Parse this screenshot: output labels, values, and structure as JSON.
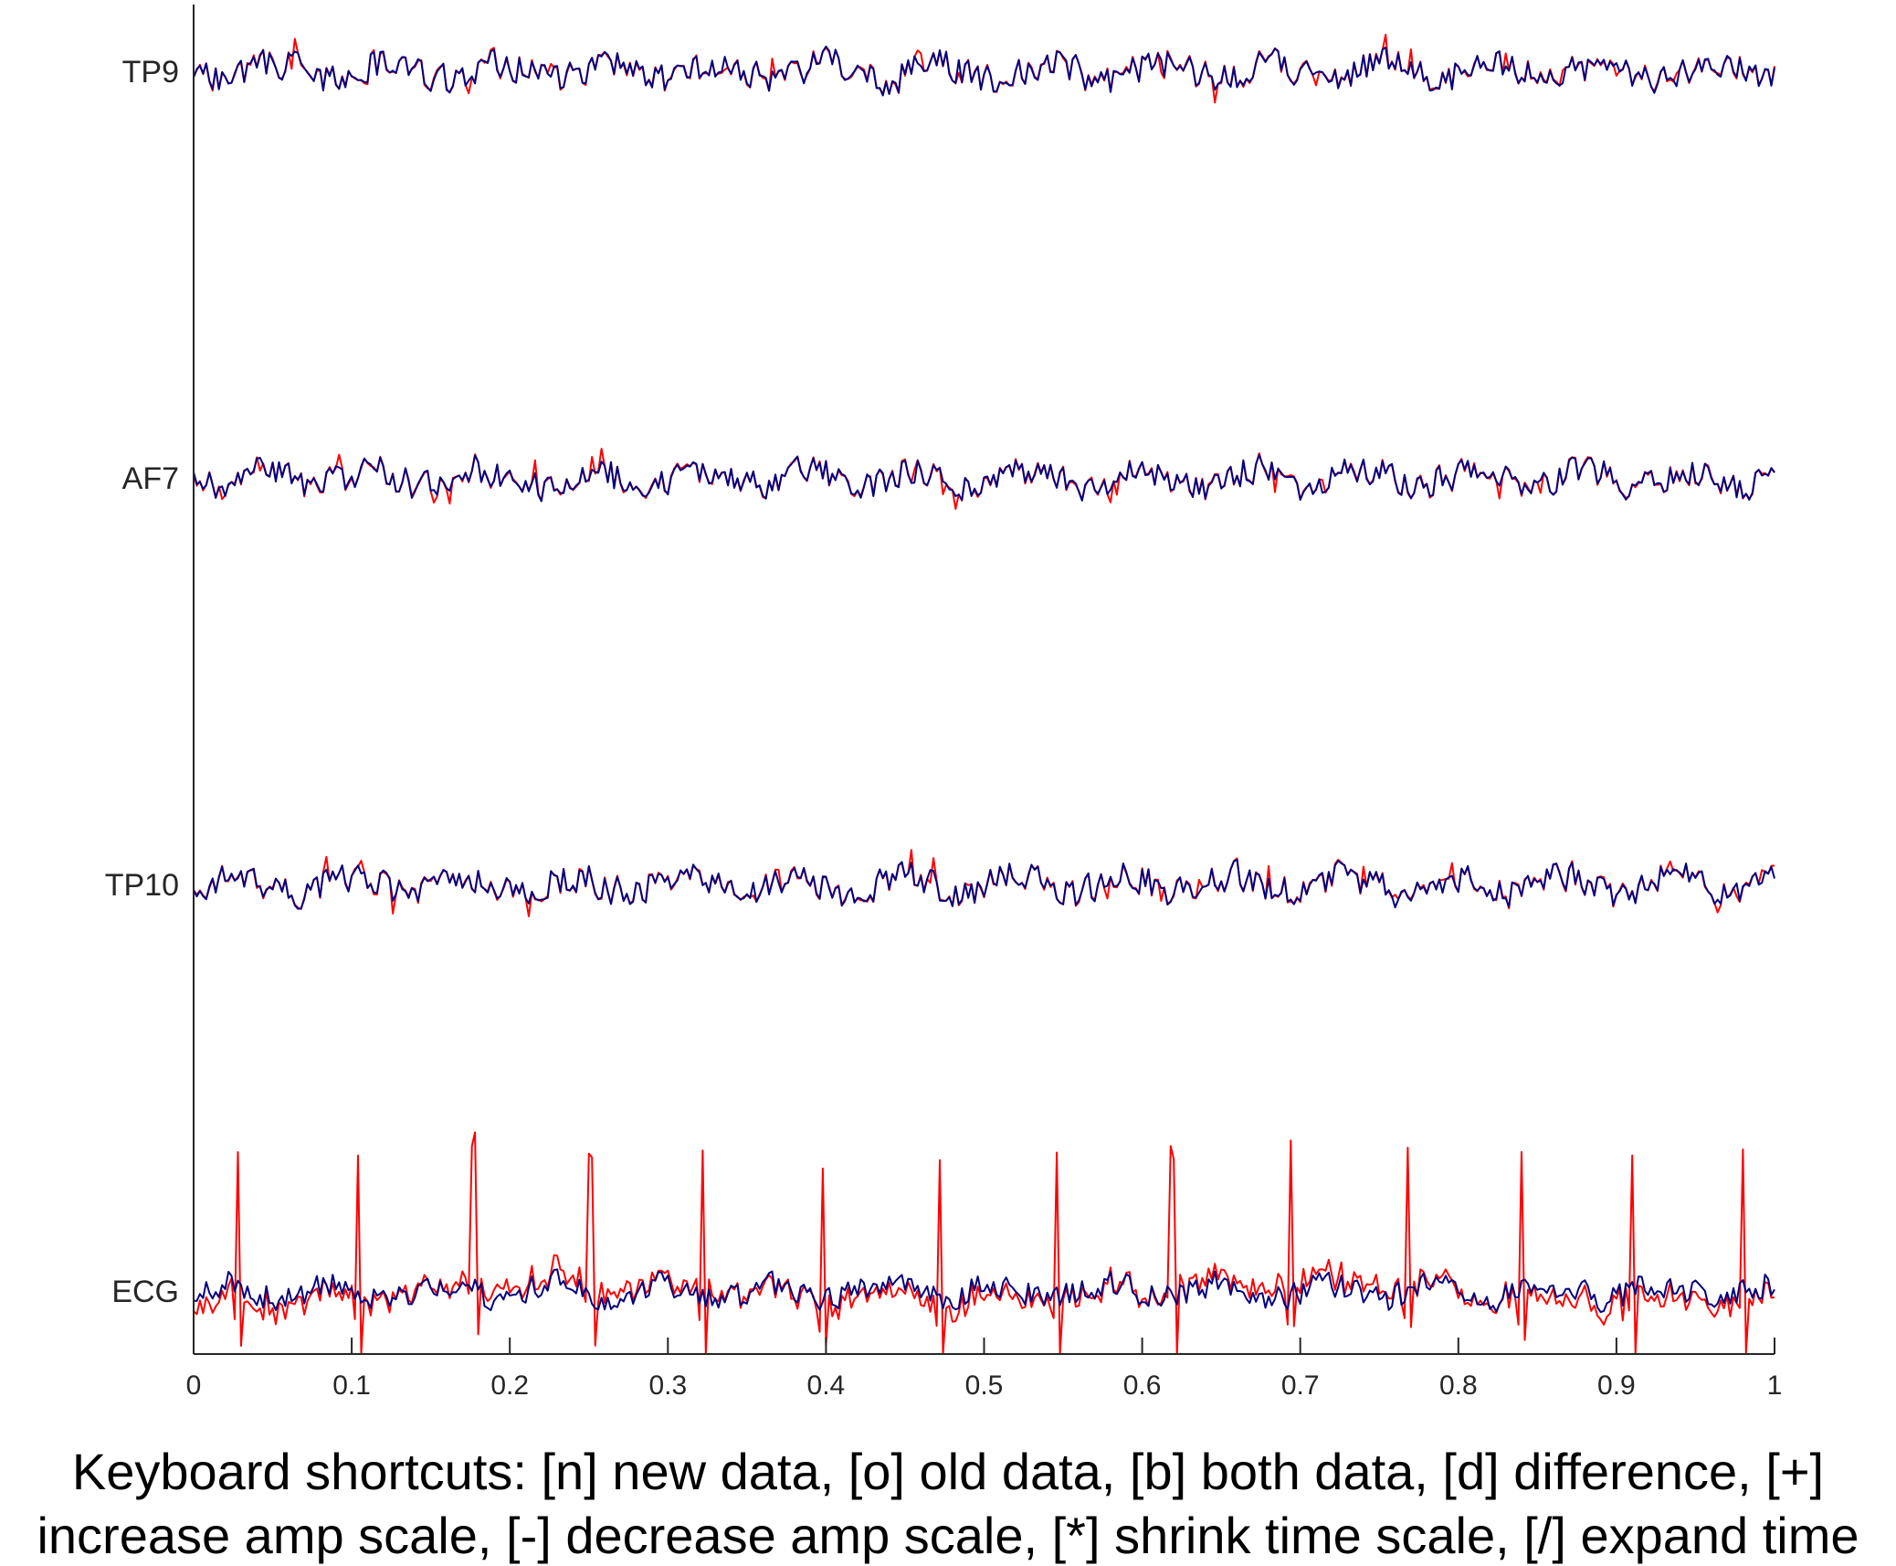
{
  "chart_data": {
    "type": "line",
    "title": "",
    "xlabel": "",
    "ylabel": "",
    "xlim": [
      0,
      1
    ],
    "x_ticks": [
      "0",
      "0.1",
      "0.2",
      "0.3",
      "0.4",
      "0.5",
      "0.6",
      "0.7",
      "0.8",
      "0.9",
      "1"
    ],
    "channels": [
      "TP9",
      "AF7",
      "TP10",
      "ECG"
    ],
    "colors": {
      "new": "#ff0000",
      "old": "#00007f",
      "axis": "#262626"
    },
    "ecg_spike_times": [
      0.028,
      0.104,
      0.177,
      0.251,
      0.322,
      0.398,
      0.472,
      0.546,
      0.619,
      0.694,
      0.768,
      0.84,
      0.91,
      0.98
    ],
    "series": [
      {
        "channel": "TP9"
      },
      {
        "channel": "AF7"
      },
      {
        "channel": "TP10"
      },
      {
        "channel": "ECG"
      }
    ],
    "grid": false,
    "legend": "none"
  },
  "caption": {
    "line1": "Keyboard shortcuts: [n] new data, [o] old data, [b] both data, [d] difference, [+]",
    "line2": "increase amp scale, [-] decrease amp scale, [*] shrink time scale, [/] expand time"
  }
}
